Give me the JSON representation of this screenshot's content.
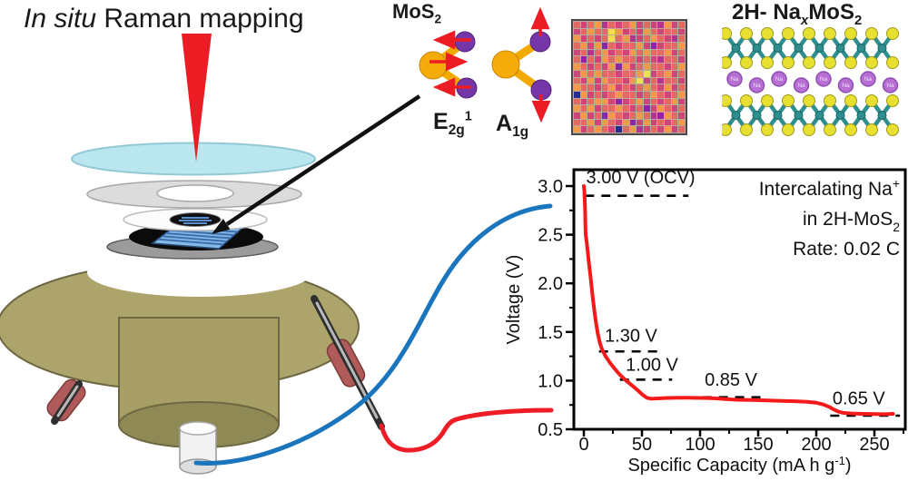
{
  "title": {
    "italic": "In situ",
    "rest": " Raman mapping"
  },
  "modes": {
    "molecule_base": "MoS",
    "molecule_sub": "2",
    "e2g": {
      "base": "E",
      "sub": "2g",
      "sup": "1"
    },
    "a1g": {
      "base": "A",
      "sub": "1g"
    }
  },
  "crystal": {
    "title_pre": "2H- Na",
    "title_sub_x": "x",
    "title_mid": "MoS",
    "title_sub_2": "2",
    "na_label": "Na"
  },
  "heatmap": {
    "palette": [
      "#F2994A",
      "#E16A62",
      "#CC4778",
      "#9023A8",
      "#F8DE4F",
      "#272C8F",
      "#B0358E"
    ],
    "rows": [
      "1210612102126021",
      "2101140212012112",
      "0212141062101261",
      "1020312110232110",
      "2161021201011021",
      "1312010112126112",
      "0121203021011210",
      "2010112110421021",
      "1202011204216112",
      "0112102121012021",
      "5021210112101210",
      "1210023210212102",
      "0102110121320121",
      "2021301210163012",
      "1102012032021210",
      "0210125106212021"
    ]
  },
  "chart_data": {
    "type": "line",
    "xlabel": {
      "main": "Specific Capacity (mA h g",
      "sup": "-1",
      "end": ")"
    },
    "ylabel": "Voltage (V)",
    "xlim": [
      -10,
      277
    ],
    "ylim": [
      0.48,
      3.17
    ],
    "xticks": [
      0,
      50,
      100,
      150,
      200,
      250
    ],
    "xminor": [
      25,
      75,
      125,
      175,
      225,
      275
    ],
    "yticks": [
      0.5,
      1.0,
      1.5,
      2.0,
      2.5,
      3.0
    ],
    "yminor": [
      0.75,
      1.25,
      1.75,
      2.25,
      2.75
    ],
    "grid": false,
    "series": [
      {
        "name": "discharge-curve",
        "color": "#F51A1A",
        "points": [
          [
            0,
            3.0
          ],
          [
            0.5,
            2.95
          ],
          [
            1,
            2.78
          ],
          [
            1.3,
            2.6
          ],
          [
            1.6,
            2.5
          ],
          [
            2.5,
            2.42
          ],
          [
            4,
            2.25
          ],
          [
            6,
            2.04
          ],
          [
            8,
            1.82
          ],
          [
            10,
            1.63
          ],
          [
            12,
            1.48
          ],
          [
            14,
            1.38
          ],
          [
            16,
            1.31
          ],
          [
            19,
            1.245
          ],
          [
            23,
            1.175
          ],
          [
            27,
            1.115
          ],
          [
            31,
            1.06
          ],
          [
            35,
            1.015
          ],
          [
            40,
            0.965
          ],
          [
            45,
            0.915
          ],
          [
            50,
            0.86
          ],
          [
            54,
            0.825
          ],
          [
            58,
            0.813
          ],
          [
            64,
            0.817
          ],
          [
            72,
            0.822
          ],
          [
            82,
            0.825
          ],
          [
            92,
            0.824
          ],
          [
            102,
            0.822
          ],
          [
            112,
            0.818
          ],
          [
            122,
            0.81
          ],
          [
            132,
            0.803
          ],
          [
            145,
            0.8
          ],
          [
            158,
            0.796
          ],
          [
            170,
            0.792
          ],
          [
            182,
            0.788
          ],
          [
            192,
            0.782
          ],
          [
            200,
            0.772
          ],
          [
            206,
            0.755
          ],
          [
            211,
            0.73
          ],
          [
            215,
            0.703
          ],
          [
            219,
            0.682
          ],
          [
            223,
            0.669
          ],
          [
            230,
            0.662
          ],
          [
            240,
            0.659
          ],
          [
            250,
            0.657
          ],
          [
            259,
            0.655
          ],
          [
            266,
            0.659
          ]
        ]
      }
    ],
    "annotations": {
      "ocv": {
        "text": "3.00 V (OCV)",
        "text_x": 2,
        "text_y": 3.03,
        "dash_y": 2.9,
        "dash_x1": 1,
        "dash_x2": 90
      },
      "plateaus": [
        {
          "text": "1.30 V",
          "text_x": 18,
          "text_y": 1.4,
          "dash_y": 1.3,
          "dash_x1": 13,
          "dash_x2": 66
        },
        {
          "text": "1.00 V",
          "text_x": 36,
          "text_y": 1.1,
          "dash_y": 1.01,
          "dash_x1": 31,
          "dash_x2": 76
        },
        {
          "text": "0.85 V",
          "text_x": 104,
          "text_y": 0.95,
          "dash_y": 0.83,
          "dash_x1": 102,
          "dash_x2": 158
        },
        {
          "text": "0.65 V",
          "text_x": 214,
          "text_y": 0.755,
          "dash_y": 0.64,
          "dash_x1": 212,
          "dash_x2": 272
        }
      ],
      "condition": [
        {
          "main": "Intercalating Na",
          "sup": "+"
        },
        {
          "main": "in 2H-MoS",
          "sub": "2"
        },
        {
          "main": "Rate: 0.02 C"
        }
      ]
    }
  }
}
